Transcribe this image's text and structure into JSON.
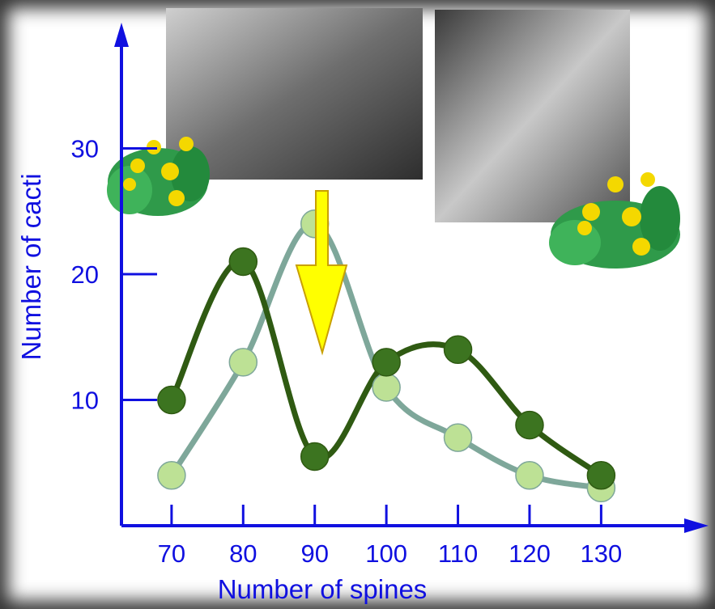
{
  "chart_data": {
    "type": "line",
    "x_label": "Number of spines",
    "y_label": "Number of cacti",
    "x": [
      70,
      80,
      90,
      100,
      110,
      120,
      130
    ],
    "series": [
      {
        "color": "#7ea79a",
        "marker_color": "#bde195",
        "values": [
          4,
          13,
          24,
          11,
          7,
          4,
          3
        ]
      },
      {
        "color": "#2f5a12",
        "marker_color": "#3c7420",
        "values": [
          10,
          21,
          5.5,
          13,
          14,
          8,
          4
        ]
      }
    ],
    "xlim": [
      63,
      145
    ],
    "ylim": [
      0,
      40
    ],
    "xticks": [
      70,
      80,
      90,
      100,
      110,
      120,
      130
    ],
    "yticks": [
      10,
      20,
      30
    ],
    "axis_color": "#1010e0",
    "smooth": true
  }
}
